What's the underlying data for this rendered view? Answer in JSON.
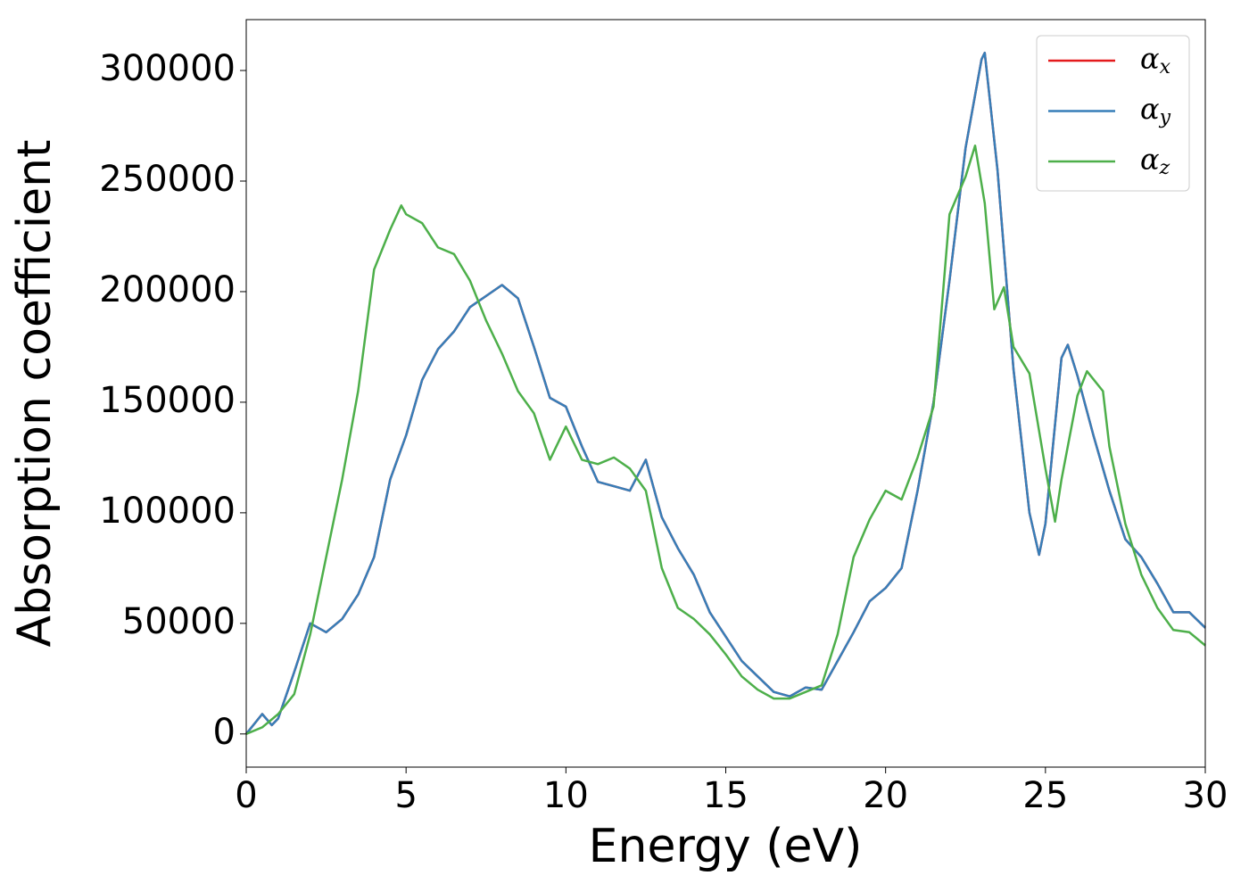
{
  "chart_data": {
    "type": "line",
    "xlabel": "Energy (eV)",
    "ylabel": "Absorption coefficient",
    "xlim": [
      0,
      30
    ],
    "ylim": [
      -15000,
      323000
    ],
    "xticks": [
      0,
      5,
      10,
      15,
      20,
      25,
      30
    ],
    "yticks": [
      0,
      50000,
      100000,
      150000,
      200000,
      250000,
      300000
    ],
    "legend": "upper right",
    "series": [
      {
        "name": "αx",
        "color": "#e41a1c",
        "x": [
          0,
          0.5,
          0.8,
          1,
          1.5,
          2,
          2.5,
          3,
          3.5,
          4,
          4.5,
          5,
          5.5,
          6,
          6.5,
          7,
          7.5,
          8,
          8.5,
          9,
          9.5,
          10,
          10.5,
          11,
          11.5,
          12,
          12.5,
          13,
          13.5,
          14,
          14.5,
          15,
          15.5,
          16,
          16.5,
          17,
          17.5,
          18,
          18.5,
          19,
          19.5,
          20,
          20.5,
          21,
          21.5,
          22,
          22.5,
          23,
          23.1,
          23.5,
          24,
          24.5,
          24.8,
          25,
          25.5,
          25.7,
          26,
          26.5,
          27,
          27.5,
          28,
          28.5,
          29,
          29.5,
          30
        ],
        "values": [
          0,
          9000,
          4000,
          7000,
          28000,
          50000,
          46000,
          52000,
          63000,
          80000,
          115000,
          135000,
          160000,
          174000,
          182000,
          193000,
          198000,
          203000,
          197000,
          175000,
          152000,
          148000,
          130000,
          114000,
          112000,
          110000,
          124000,
          98000,
          84000,
          72000,
          55000,
          44000,
          33000,
          26000,
          19000,
          17000,
          21000,
          20000,
          33000,
          46000,
          60000,
          66000,
          75000,
          110000,
          150000,
          205000,
          265000,
          305000,
          308000,
          255000,
          165000,
          100000,
          81000,
          95000,
          170000,
          176000,
          162000,
          135000,
          110000,
          88000,
          80000,
          68000,
          55000,
          55000,
          48000
        ]
      },
      {
        "name": "αy",
        "color": "#377eb8",
        "x": [
          0,
          0.5,
          0.8,
          1,
          1.5,
          2,
          2.5,
          3,
          3.5,
          4,
          4.5,
          5,
          5.5,
          6,
          6.5,
          7,
          7.5,
          8,
          8.5,
          9,
          9.5,
          10,
          10.5,
          11,
          11.5,
          12,
          12.5,
          13,
          13.5,
          14,
          14.5,
          15,
          15.5,
          16,
          16.5,
          17,
          17.5,
          18,
          18.5,
          19,
          19.5,
          20,
          20.5,
          21,
          21.5,
          22,
          22.5,
          23,
          23.1,
          23.5,
          24,
          24.5,
          24.8,
          25,
          25.5,
          25.7,
          26,
          26.5,
          27,
          27.5,
          28,
          28.5,
          29,
          29.5,
          30
        ],
        "values": [
          0,
          9000,
          4000,
          7000,
          28000,
          50000,
          46000,
          52000,
          63000,
          80000,
          115000,
          135000,
          160000,
          174000,
          182000,
          193000,
          198000,
          203000,
          197000,
          175000,
          152000,
          148000,
          130000,
          114000,
          112000,
          110000,
          124000,
          98000,
          84000,
          72000,
          55000,
          44000,
          33000,
          26000,
          19000,
          17000,
          21000,
          20000,
          33000,
          46000,
          60000,
          66000,
          75000,
          110000,
          150000,
          205000,
          265000,
          305000,
          308000,
          255000,
          165000,
          100000,
          81000,
          95000,
          170000,
          176000,
          162000,
          135000,
          110000,
          88000,
          80000,
          68000,
          55000,
          55000,
          48000
        ]
      },
      {
        "name": "αz",
        "color": "#4daf4a",
        "x": [
          0,
          0.5,
          1,
          1.5,
          2,
          2.5,
          3,
          3.5,
          4,
          4.5,
          4.85,
          5,
          5.5,
          6,
          6.5,
          7,
          7.5,
          8,
          8.5,
          9,
          9.5,
          10,
          10.5,
          11,
          11.5,
          12,
          12.5,
          13,
          13.5,
          14,
          14.5,
          15,
          15.5,
          16,
          16.5,
          17,
          17.5,
          18,
          18.5,
          19,
          19.5,
          20,
          20.5,
          21,
          21.5,
          22,
          22.5,
          22.8,
          23.1,
          23.4,
          23.7,
          24,
          24.5,
          25,
          25.3,
          25.5,
          26,
          26.3,
          26.8,
          27,
          27.5,
          28,
          28.5,
          29,
          29.5,
          30
        ],
        "values": [
          0,
          3000,
          9000,
          18000,
          45000,
          80000,
          115000,
          155000,
          210000,
          228000,
          239000,
          235000,
          231000,
          220000,
          217000,
          205000,
          187000,
          172000,
          155000,
          145000,
          124000,
          139000,
          124000,
          122000,
          125000,
          120000,
          110000,
          75000,
          57000,
          52000,
          45000,
          36000,
          26000,
          20000,
          16000,
          16000,
          19000,
          22000,
          45000,
          80000,
          97000,
          110000,
          106000,
          125000,
          148000,
          235000,
          252000,
          266000,
          240000,
          192000,
          202000,
          175000,
          163000,
          120000,
          96000,
          115000,
          153000,
          164000,
          155000,
          130000,
          95000,
          72000,
          57000,
          47000,
          46000,
          40000
        ]
      }
    ]
  }
}
